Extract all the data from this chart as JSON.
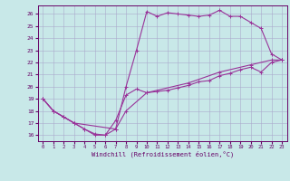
{
  "xlabel": "Windchill (Refroidissement éolien,°C)",
  "bg_color": "#c8e8e8",
  "grid_color": "#aaaacc",
  "line_color": "#993399",
  "xlim": [
    -0.5,
    23.5
  ],
  "ylim": [
    15.5,
    26.7
  ],
  "xticks": [
    0,
    1,
    2,
    3,
    4,
    5,
    6,
    7,
    8,
    9,
    10,
    11,
    12,
    13,
    14,
    15,
    16,
    17,
    18,
    19,
    20,
    21,
    22,
    23
  ],
  "yticks": [
    16,
    17,
    18,
    19,
    20,
    21,
    22,
    23,
    24,
    25,
    26
  ],
  "line1_x": [
    0,
    1,
    2,
    3,
    4,
    5,
    6,
    7,
    8,
    9,
    10,
    11,
    12,
    13,
    14,
    15,
    16,
    17,
    18,
    19,
    20,
    21,
    22,
    23
  ],
  "line1_y": [
    19,
    18,
    17.5,
    17,
    16.5,
    16,
    16,
    16.5,
    20,
    23,
    26.2,
    25.8,
    26.1,
    26.0,
    25.9,
    25.8,
    25.9,
    26.3,
    25.8,
    25.8,
    25.3,
    24.8,
    22.7,
    22.2
  ],
  "line2_x": [
    0,
    1,
    2,
    3,
    4,
    5,
    6,
    7,
    8,
    9,
    10,
    11,
    12,
    13,
    14,
    15,
    16,
    17,
    18,
    19,
    20,
    21,
    22,
    23
  ],
  "line2_y": [
    19,
    18,
    17.5,
    17,
    16.5,
    16.1,
    16.0,
    17.2,
    19.3,
    19.8,
    19.5,
    19.6,
    19.7,
    19.9,
    20.1,
    20.4,
    20.5,
    20.9,
    21.1,
    21.4,
    21.6,
    21.2,
    22.0,
    22.2
  ],
  "line3_x": [
    0,
    1,
    2,
    3,
    7,
    8,
    10,
    14,
    17,
    20,
    22,
    23
  ],
  "line3_y": [
    19,
    18,
    17.5,
    17,
    16.5,
    18.0,
    19.5,
    20.3,
    21.2,
    21.8,
    22.2,
    22.2
  ],
  "figsize": [
    3.2,
    2.0
  ],
  "dpi": 100
}
